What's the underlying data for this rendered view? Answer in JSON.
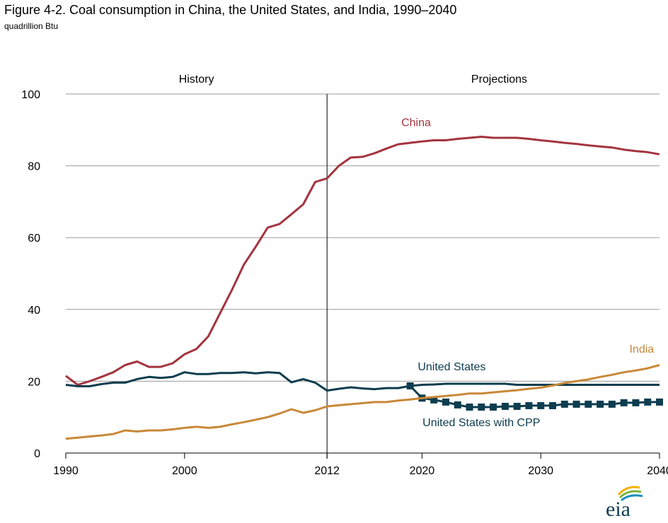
{
  "title": "Figure 4-2. Coal consumption in China, the United States, and India, 1990–2040",
  "subtitle": "quadrillion Btu",
  "logo_text": "eia",
  "colors": {
    "china": "#a3343f",
    "us": "#0d3d4f",
    "india": "#c98838",
    "grid": "#9a9a9a",
    "divider": "#000000"
  },
  "chart_data": {
    "type": "line",
    "title": "Figure 4-2. Coal consumption in China, the United States, and India, 1990–2040",
    "ylabel": "quadrillion Btu",
    "xlim": [
      1990,
      2040
    ],
    "ylim": [
      0,
      100
    ],
    "x_ticks": [
      1990,
      2000,
      2012,
      2020,
      2030,
      2040
    ],
    "y_ticks": [
      0,
      20,
      40,
      60,
      80,
      100
    ],
    "grid": "horizontal",
    "divider_year": 2012,
    "regions": [
      {
        "label": "History",
        "center_year": 2001
      },
      {
        "label": "Projections",
        "center_year": 2026.5
      }
    ],
    "series": [
      {
        "name": "China",
        "color": "#a3343f",
        "label_at": [
          2019.5,
          91
        ],
        "x": [
          1990,
          1991,
          1992,
          1993,
          1994,
          1995,
          1996,
          1997,
          1998,
          1999,
          2000,
          2001,
          2002,
          2003,
          2004,
          2005,
          2006,
          2007,
          2008,
          2009,
          2010,
          2011,
          2012,
          2013,
          2014,
          2015,
          2016,
          2017,
          2018,
          2019,
          2020,
          2021,
          2022,
          2023,
          2024,
          2025,
          2026,
          2027,
          2028,
          2029,
          2030,
          2031,
          2032,
          2033,
          2034,
          2035,
          2036,
          2037,
          2038,
          2039,
          2040
        ],
        "values": [
          21.5,
          19.0,
          20.0,
          21.2,
          22.5,
          24.5,
          25.5,
          24.0,
          24.0,
          25.0,
          27.5,
          29.0,
          32.5,
          39.0,
          45.5,
          52.5,
          57.5,
          62.8,
          63.8,
          66.5,
          69.3,
          75.5,
          76.5,
          80.0,
          82.3,
          82.5,
          83.5,
          84.8,
          86.0,
          86.4,
          86.8,
          87.1,
          87.1,
          87.5,
          87.8,
          88.1,
          87.8,
          87.8,
          87.8,
          87.5,
          87.1,
          86.8,
          86.4,
          86.1,
          85.7,
          85.4,
          85.1,
          84.5,
          84.1,
          83.8,
          83.2
        ]
      },
      {
        "name": "United States",
        "color": "#0d3d4f",
        "label_at": [
          2022.5,
          23
        ],
        "x": [
          1990,
          1991,
          1992,
          1993,
          1994,
          1995,
          1996,
          1997,
          1998,
          1999,
          2000,
          2001,
          2002,
          2003,
          2004,
          2005,
          2006,
          2007,
          2008,
          2009,
          2010,
          2011,
          2012,
          2013,
          2014,
          2015,
          2016,
          2017,
          2018,
          2019,
          2020,
          2021,
          2022,
          2023,
          2024,
          2025,
          2026,
          2027,
          2028,
          2029,
          2030,
          2031,
          2032,
          2033,
          2034,
          2035,
          2036,
          2037,
          2038,
          2039,
          2040
        ],
        "values": [
          19.0,
          18.6,
          18.6,
          19.2,
          19.6,
          19.6,
          20.6,
          21.2,
          20.9,
          21.2,
          22.5,
          22.0,
          22.0,
          22.3,
          22.3,
          22.5,
          22.2,
          22.5,
          22.3,
          19.7,
          20.6,
          19.6,
          17.4,
          17.9,
          18.3,
          18.0,
          17.8,
          18.1,
          18.1,
          18.7,
          19.0,
          19.1,
          19.3,
          19.3,
          19.3,
          19.3,
          19.3,
          19.3,
          19.0,
          19.0,
          19.0,
          19.0,
          19.0,
          19.0,
          19.0,
          19.0,
          19.0,
          19.0,
          19.0,
          19.0,
          19.0
        ]
      },
      {
        "name": "United States with CPP",
        "color": "#0d3d4f",
        "markers": true,
        "label_at": [
          2025,
          7.5
        ],
        "x": [
          2019,
          2020,
          2021,
          2022,
          2023,
          2024,
          2025,
          2026,
          2027,
          2028,
          2029,
          2030,
          2031,
          2032,
          2033,
          2034,
          2035,
          2036,
          2037,
          2038,
          2039,
          2040
        ],
        "values": [
          18.7,
          15.3,
          14.8,
          14.2,
          13.4,
          12.8,
          12.8,
          12.8,
          13.0,
          13.0,
          13.2,
          13.2,
          13.2,
          13.6,
          13.6,
          13.6,
          13.6,
          13.6,
          14.0,
          14.0,
          14.2,
          14.2
        ]
      },
      {
        "name": "India",
        "color": "#c98838",
        "label_at": [
          2038.5,
          28
        ],
        "x": [
          1990,
          1991,
          1992,
          1993,
          1994,
          1995,
          1996,
          1997,
          1998,
          1999,
          2000,
          2001,
          2002,
          2003,
          2004,
          2005,
          2006,
          2007,
          2008,
          2009,
          2010,
          2011,
          2012,
          2013,
          2014,
          2015,
          2016,
          2017,
          2018,
          2019,
          2020,
          2021,
          2022,
          2023,
          2024,
          2025,
          2026,
          2027,
          2028,
          2029,
          2030,
          2031,
          2032,
          2033,
          2034,
          2035,
          2036,
          2037,
          2038,
          2039,
          2040
        ],
        "values": [
          4.0,
          4.3,
          4.6,
          4.9,
          5.3,
          6.3,
          6.0,
          6.3,
          6.3,
          6.6,
          7.0,
          7.3,
          7.0,
          7.3,
          8.0,
          8.6,
          9.3,
          10.0,
          11.0,
          12.2,
          11.2,
          11.9,
          13.0,
          13.3,
          13.6,
          13.9,
          14.2,
          14.2,
          14.6,
          14.9,
          15.3,
          15.6,
          15.9,
          16.2,
          16.6,
          16.6,
          16.9,
          17.2,
          17.5,
          17.9,
          18.2,
          18.8,
          19.5,
          20.0,
          20.5,
          21.2,
          21.8,
          22.5,
          23.0,
          23.6,
          24.5
        ]
      }
    ]
  }
}
